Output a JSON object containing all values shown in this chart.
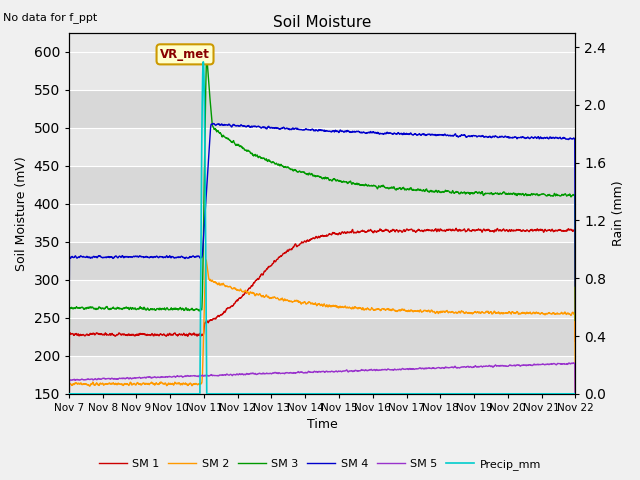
{
  "title": "Soil Moisture",
  "subtitle": "No data for f_ppt",
  "xlabel": "Time",
  "ylabel_left": "Soil Moisture (mV)",
  "ylabel_right": "Rain (mm)",
  "ylim_left": [
    150,
    625
  ],
  "ylim_right": [
    0.0,
    2.5
  ],
  "yticks_left": [
    150,
    200,
    250,
    300,
    350,
    400,
    450,
    500,
    550,
    600
  ],
  "yticks_right": [
    0.0,
    0.4,
    0.8,
    1.2,
    1.6,
    2.0,
    2.4
  ],
  "xtick_labels": [
    "Nov 7",
    "Nov 8",
    "Nov 9",
    "Nov 10",
    "Nov 11",
    "Nov 12",
    "Nov 13",
    "Nov 14",
    "Nov 15",
    "Nov 16",
    "Nov 17",
    "Nov 18",
    "Nov 19",
    "Nov 20",
    "Nov 21",
    "Nov 22"
  ],
  "annotation_text": "VR_met",
  "colors": {
    "SM1": "#cc0000",
    "SM2": "#ff9900",
    "SM3": "#009900",
    "SM4": "#0000cc",
    "SM5": "#9933cc",
    "Precip": "#00cccc"
  },
  "band_colors": [
    "#e8e8e8",
    "#d8d8d8"
  ],
  "fig_bg": "#f0f0f0",
  "grid_color": "#ffffff"
}
